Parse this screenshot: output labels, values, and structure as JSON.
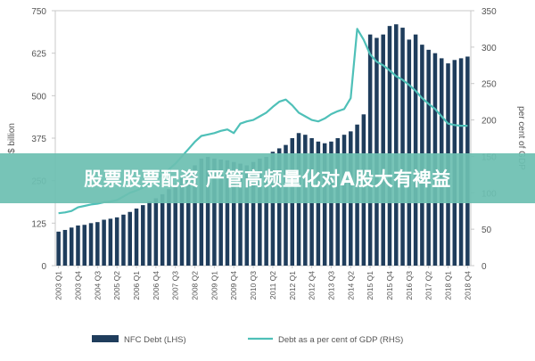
{
  "banner": {
    "text": "股票股票配资 严管高频量化对A股大有裨益"
  },
  "chart_data": {
    "type": "bar",
    "categories": [
      "2003 Q1",
      "2003 Q2",
      "2003 Q3",
      "2003 Q4",
      "2004 Q1",
      "2004 Q2",
      "2004 Q3",
      "2004 Q4",
      "2005 Q1",
      "2005 Q2",
      "2005 Q3",
      "2005 Q4",
      "2006 Q1",
      "2006 Q2",
      "2006 Q3",
      "2006 Q4",
      "2007 Q1",
      "2007 Q2",
      "2007 Q3",
      "2007 Q4",
      "2008 Q1",
      "2008 Q2",
      "2008 Q3",
      "2008 Q4",
      "2009 Q1",
      "2009 Q2",
      "2009 Q3",
      "2009 Q4",
      "2010 Q1",
      "2010 Q2",
      "2010 Q3",
      "2010 Q4",
      "2011 Q1",
      "2011 Q2",
      "2011 Q3",
      "2011 Q4",
      "2012 Q1",
      "2012 Q2",
      "2012 Q3",
      "2012 Q4",
      "2013 Q1",
      "2013 Q2",
      "2013 Q3",
      "2013 Q4",
      "2014 Q1",
      "2014 Q2",
      "2014 Q3",
      "2014 Q4",
      "2015 Q1",
      "2015 Q2",
      "2015 Q3",
      "2015 Q4",
      "2016 Q1",
      "2016 Q2",
      "2016 Q3",
      "2016 Q4",
      "2017 Q1",
      "2017 Q2",
      "2017 Q3",
      "2017 Q4",
      "2018 Q1",
      "2018 Q2",
      "2018 Q3",
      "2018 Q4"
    ],
    "tick_labels": [
      "2003 Q1",
      "2003 Q4",
      "2004 Q3",
      "2005 Q2",
      "2006 Q1",
      "2006 Q4",
      "2007 Q3",
      "2008 Q2",
      "2009 Q1",
      "2009 Q4",
      "2010 Q3",
      "2011 Q2",
      "2012 Q1",
      "2012 Q4",
      "2013 Q3",
      "2014 Q2",
      "2015 Q1",
      "2015 Q4",
      "2016 Q3",
      "2017 Q2",
      "2018 Q1",
      "2018 Q4"
    ],
    "series": [
      {
        "name": "NFC Debt (LHS)",
        "axis": "left",
        "kind": "bar",
        "color": "#1f3d5c",
        "values": [
          100,
          105,
          112,
          118,
          120,
          125,
          128,
          135,
          138,
          142,
          150,
          158,
          168,
          178,
          188,
          198,
          210,
          225,
          240,
          258,
          275,
          295,
          315,
          320,
          315,
          312,
          310,
          305,
          300,
          295,
          305,
          315,
          320,
          335,
          345,
          355,
          375,
          390,
          385,
          375,
          365,
          360,
          365,
          375,
          385,
          395,
          415,
          445,
          680,
          670,
          680,
          705,
          710,
          700,
          665,
          680,
          650,
          635,
          625,
          610,
          595,
          605,
          610,
          615
        ]
      },
      {
        "name": "Debt as a per cent of GDP (RHS)",
        "axis": "right",
        "kind": "line",
        "color": "#4fc0b8",
        "values": [
          72,
          73,
          75,
          80,
          82,
          84,
          85,
          87,
          88,
          90,
          95,
          100,
          103,
          107,
          113,
          118,
          125,
          132,
          140,
          150,
          160,
          170,
          178,
          180,
          182,
          185,
          187,
          182,
          195,
          198,
          200,
          205,
          210,
          218,
          225,
          228,
          220,
          210,
          205,
          200,
          198,
          202,
          208,
          212,
          215,
          230,
          325,
          310,
          290,
          280,
          275,
          268,
          260,
          255,
          248,
          240,
          230,
          222,
          215,
          205,
          195,
          193,
          192,
          192
        ]
      }
    ],
    "y_left": {
      "ticks": [
        0,
        125,
        250,
        375,
        500,
        625,
        750
      ],
      "ylim": [
        0,
        750
      ],
      "label": "$ billion"
    },
    "y_right": {
      "ticks": [
        0,
        50,
        100,
        150,
        200,
        250,
        300,
        350
      ],
      "ylim": [
        0,
        350
      ],
      "label": "per cent of GDP"
    },
    "grid": false,
    "legend_position": "bottom"
  }
}
